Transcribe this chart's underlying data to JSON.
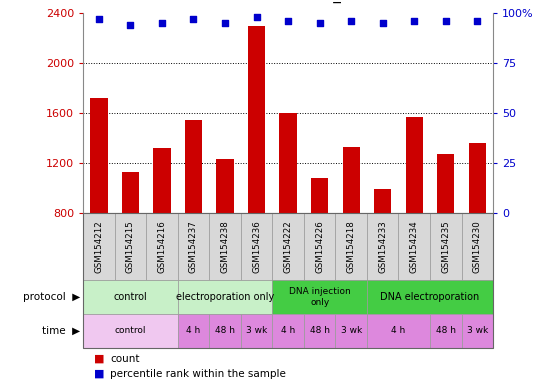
{
  "samples": [
    "GSM154212",
    "GSM154215",
    "GSM154216",
    "GSM154237",
    "GSM154238",
    "GSM154236",
    "GSM154222",
    "GSM154226",
    "GSM154218",
    "GSM154233",
    "GSM154234",
    "GSM154235",
    "GSM154230"
  ],
  "counts": [
    1720,
    1130,
    1320,
    1540,
    1230,
    2300,
    1600,
    1080,
    1330,
    990,
    1570,
    1270,
    1360
  ],
  "percentile": [
    97,
    94,
    95,
    97,
    95,
    98,
    96,
    95,
    96,
    95,
    96,
    96,
    96
  ],
  "bar_color": "#cc0000",
  "dot_color": "#0000cc",
  "ymin": 800,
  "ymax": 2400,
  "yticks": [
    800,
    1200,
    1600,
    2000,
    2400
  ],
  "y2min": 0,
  "y2max": 100,
  "y2ticks": [
    0,
    25,
    50,
    75,
    100
  ],
  "bg_color": "#ffffff",
  "grid_color": "#000000",
  "prot_sections": [
    [
      0,
      2,
      "#c8f0c8",
      "control"
    ],
    [
      3,
      5,
      "#c8f0c8",
      "electroporation only"
    ],
    [
      6,
      8,
      "#44cc44",
      "DNA injection\nonly"
    ],
    [
      9,
      12,
      "#44cc44",
      "DNA electroporation"
    ]
  ],
  "time_sections": [
    [
      0,
      2,
      "#f0c8f0",
      "control"
    ],
    [
      3,
      3,
      "#dd88dd",
      "4 h"
    ],
    [
      4,
      4,
      "#dd88dd",
      "48 h"
    ],
    [
      5,
      5,
      "#dd88dd",
      "3 wk"
    ],
    [
      6,
      6,
      "#dd88dd",
      "4 h"
    ],
    [
      7,
      7,
      "#dd88dd",
      "48 h"
    ],
    [
      8,
      8,
      "#dd88dd",
      "3 wk"
    ],
    [
      9,
      10,
      "#dd88dd",
      "4 h"
    ],
    [
      11,
      11,
      "#dd88dd",
      "48 h"
    ],
    [
      12,
      12,
      "#dd88dd",
      "3 wk"
    ]
  ]
}
